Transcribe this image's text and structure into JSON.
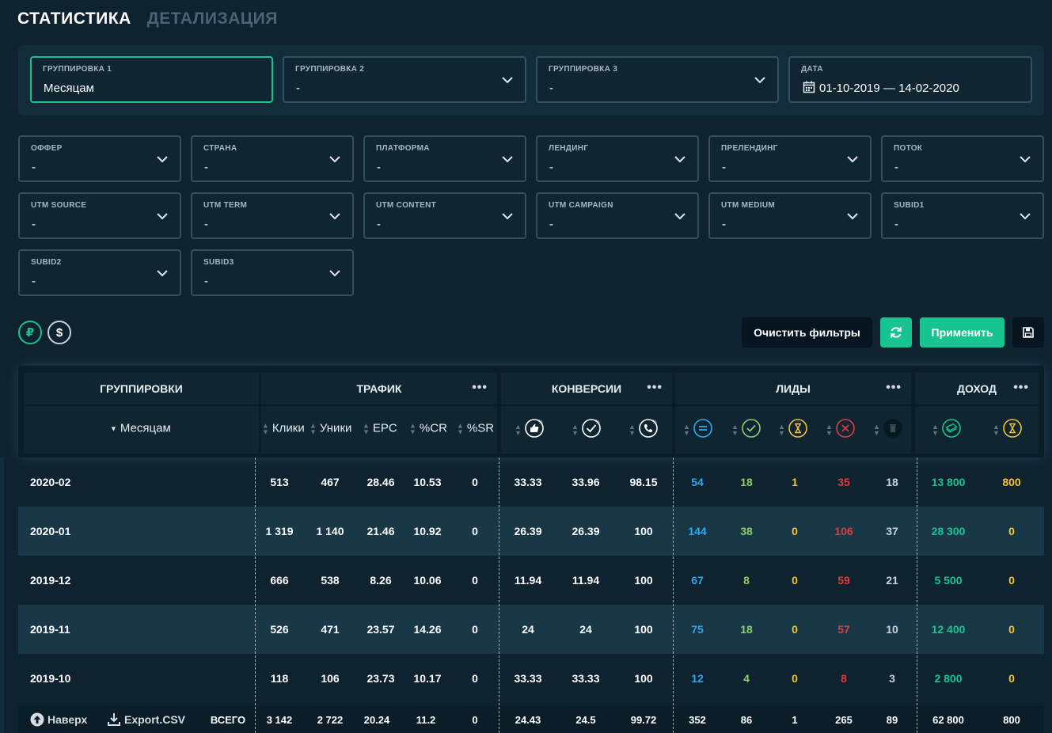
{
  "tabs": {
    "statistics": "СТАТИСТИКА",
    "details": "ДЕТАЛИЗАЦИЯ"
  },
  "grouping": [
    {
      "label": "ГРУППИРОВКА 1",
      "value": "Месяцам"
    },
    {
      "label": "ГРУППИРОВКА 2",
      "value": "-"
    },
    {
      "label": "ГРУППИРОВКА 3",
      "value": "-"
    }
  ],
  "date": {
    "label": "ДАТА",
    "value": "01-10-2019 — 14-02-2020"
  },
  "filters": [
    {
      "label": "ОФФЕР",
      "value": "-"
    },
    {
      "label": "СТРАНА",
      "value": "-"
    },
    {
      "label": "ПЛАТФОРМА",
      "value": "-"
    },
    {
      "label": "ЛЕНДИНГ",
      "value": "-"
    },
    {
      "label": "ПРЕЛЕНДИНГ",
      "value": "-"
    },
    {
      "label": "ПОТОК",
      "value": "-"
    },
    {
      "label": "UTM SOURCE",
      "value": "-"
    },
    {
      "label": "UTM TERM",
      "value": "-"
    },
    {
      "label": "UTM CONTENT",
      "value": "-"
    },
    {
      "label": "UTM CAMPAIGN",
      "value": "-"
    },
    {
      "label": "UTM MEDIUM",
      "value": "-"
    },
    {
      "label": "SUBID1",
      "value": "-"
    },
    {
      "label": "SUBID2",
      "value": "-"
    },
    {
      "label": "SUBID3",
      "value": "-"
    }
  ],
  "currency": {
    "rub": "₽",
    "usd": "$"
  },
  "actions": {
    "clear": "Очистить фильтры",
    "apply": "Применить"
  },
  "table": {
    "groups": {
      "grouping": "ГРУППИРОВКИ",
      "traffic": "ТРАФИК",
      "conversions": "КОНВЕРСИИ",
      "leads": "ЛИДЫ",
      "income": "ДОХОД",
      "more": "•••"
    },
    "columns": {
      "group_by": "Месяцам",
      "clicks": "Клики",
      "uniques": "Уники",
      "epc": "EPC",
      "cr": "%CR",
      "sr": "%SR"
    },
    "rows": [
      {
        "period": "2020-02",
        "clicks": "513",
        "uniques": "467",
        "epc": "28.46",
        "cr": "10.53",
        "sr": "0",
        "conv1": "33.33",
        "conv2": "33.96",
        "conv3": "98.15",
        "l_total": "54",
        "l_approved": "18",
        "l_hold": "1",
        "l_rejected": "35",
        "l_trash": "18",
        "inc_paid": "13 800",
        "inc_hold": "800"
      },
      {
        "period": "2020-01",
        "clicks": "1 319",
        "uniques": "1 140",
        "epc": "21.46",
        "cr": "10.92",
        "sr": "0",
        "conv1": "26.39",
        "conv2": "26.39",
        "conv3": "100",
        "l_total": "144",
        "l_approved": "38",
        "l_hold": "0",
        "l_rejected": "106",
        "l_trash": "37",
        "inc_paid": "28 300",
        "inc_hold": "0"
      },
      {
        "period": "2019-12",
        "clicks": "666",
        "uniques": "538",
        "epc": "8.26",
        "cr": "10.06",
        "sr": "0",
        "conv1": "11.94",
        "conv2": "11.94",
        "conv3": "100",
        "l_total": "67",
        "l_approved": "8",
        "l_hold": "0",
        "l_rejected": "59",
        "l_trash": "21",
        "inc_paid": "5 500",
        "inc_hold": "0"
      },
      {
        "period": "2019-11",
        "clicks": "526",
        "uniques": "471",
        "epc": "23.57",
        "cr": "14.26",
        "sr": "0",
        "conv1": "24",
        "conv2": "24",
        "conv3": "100",
        "l_total": "75",
        "l_approved": "18",
        "l_hold": "0",
        "l_rejected": "57",
        "l_trash": "10",
        "inc_paid": "12 400",
        "inc_hold": "0"
      },
      {
        "period": "2019-10",
        "clicks": "118",
        "uniques": "106",
        "epc": "23.73",
        "cr": "10.17",
        "sr": "0",
        "conv1": "33.33",
        "conv2": "33.33",
        "conv3": "100",
        "l_total": "12",
        "l_approved": "4",
        "l_hold": "0",
        "l_rejected": "8",
        "l_trash": "3",
        "inc_paid": "2 800",
        "inc_hold": "0"
      }
    ],
    "footer": {
      "top": "Наверх",
      "export": "Export.CSV",
      "total_label": "ВСЕГО",
      "clicks": "3 142",
      "uniques": "2 722",
      "epc": "20.24",
      "cr": "11.2",
      "sr": "0",
      "conv1": "24.43",
      "conv2": "24.5",
      "conv3": "99.72",
      "l_total": "352",
      "l_approved": "86",
      "l_hold": "1",
      "l_rejected": "265",
      "l_trash": "89",
      "inc_paid": "62 800",
      "inc_hold": "800"
    }
  },
  "colors": {
    "accent": "#17c48f",
    "lead_total": "#2fa7e8",
    "lead_approved": "#8dd068",
    "lead_hold": "#f4c430",
    "lead_rejected": "#e03c3c"
  }
}
